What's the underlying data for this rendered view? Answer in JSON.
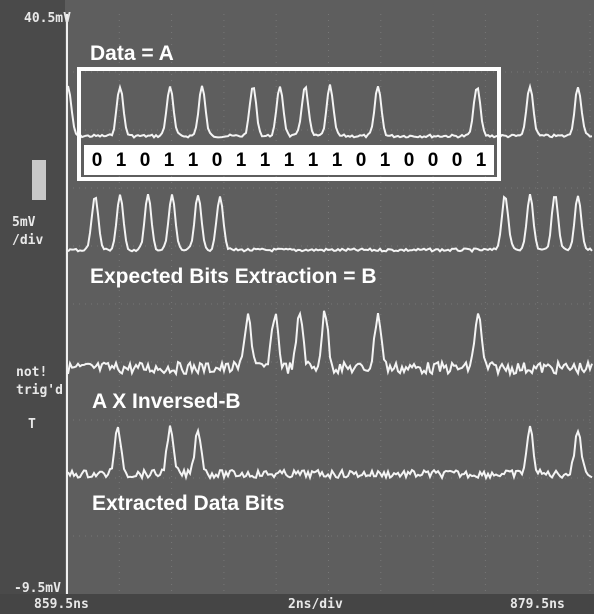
{
  "scope": {
    "top_level": "40.5mV",
    "bottom_level": "-9.5mV",
    "scale_value": "5mV",
    "scale_unit": "/div",
    "trigger_line1": "not!",
    "trigger_line2": "trig'd",
    "trigger_mark": "T",
    "time_start": "859.5ns",
    "time_scale": "2ns/div",
    "time_end": "879.5ns"
  },
  "annotations": {
    "data_label": "Data = A",
    "bits": [
      "0",
      "1",
      "0",
      "1",
      "1",
      "0",
      "1",
      "1",
      "1",
      "1",
      "1",
      "0",
      "1",
      "0",
      "0",
      "0",
      "1"
    ],
    "expected_label": "Expected Bits Extraction = B",
    "product_label": "A X Inversed-B",
    "extracted_label": "Extracted Data Bits"
  }
}
